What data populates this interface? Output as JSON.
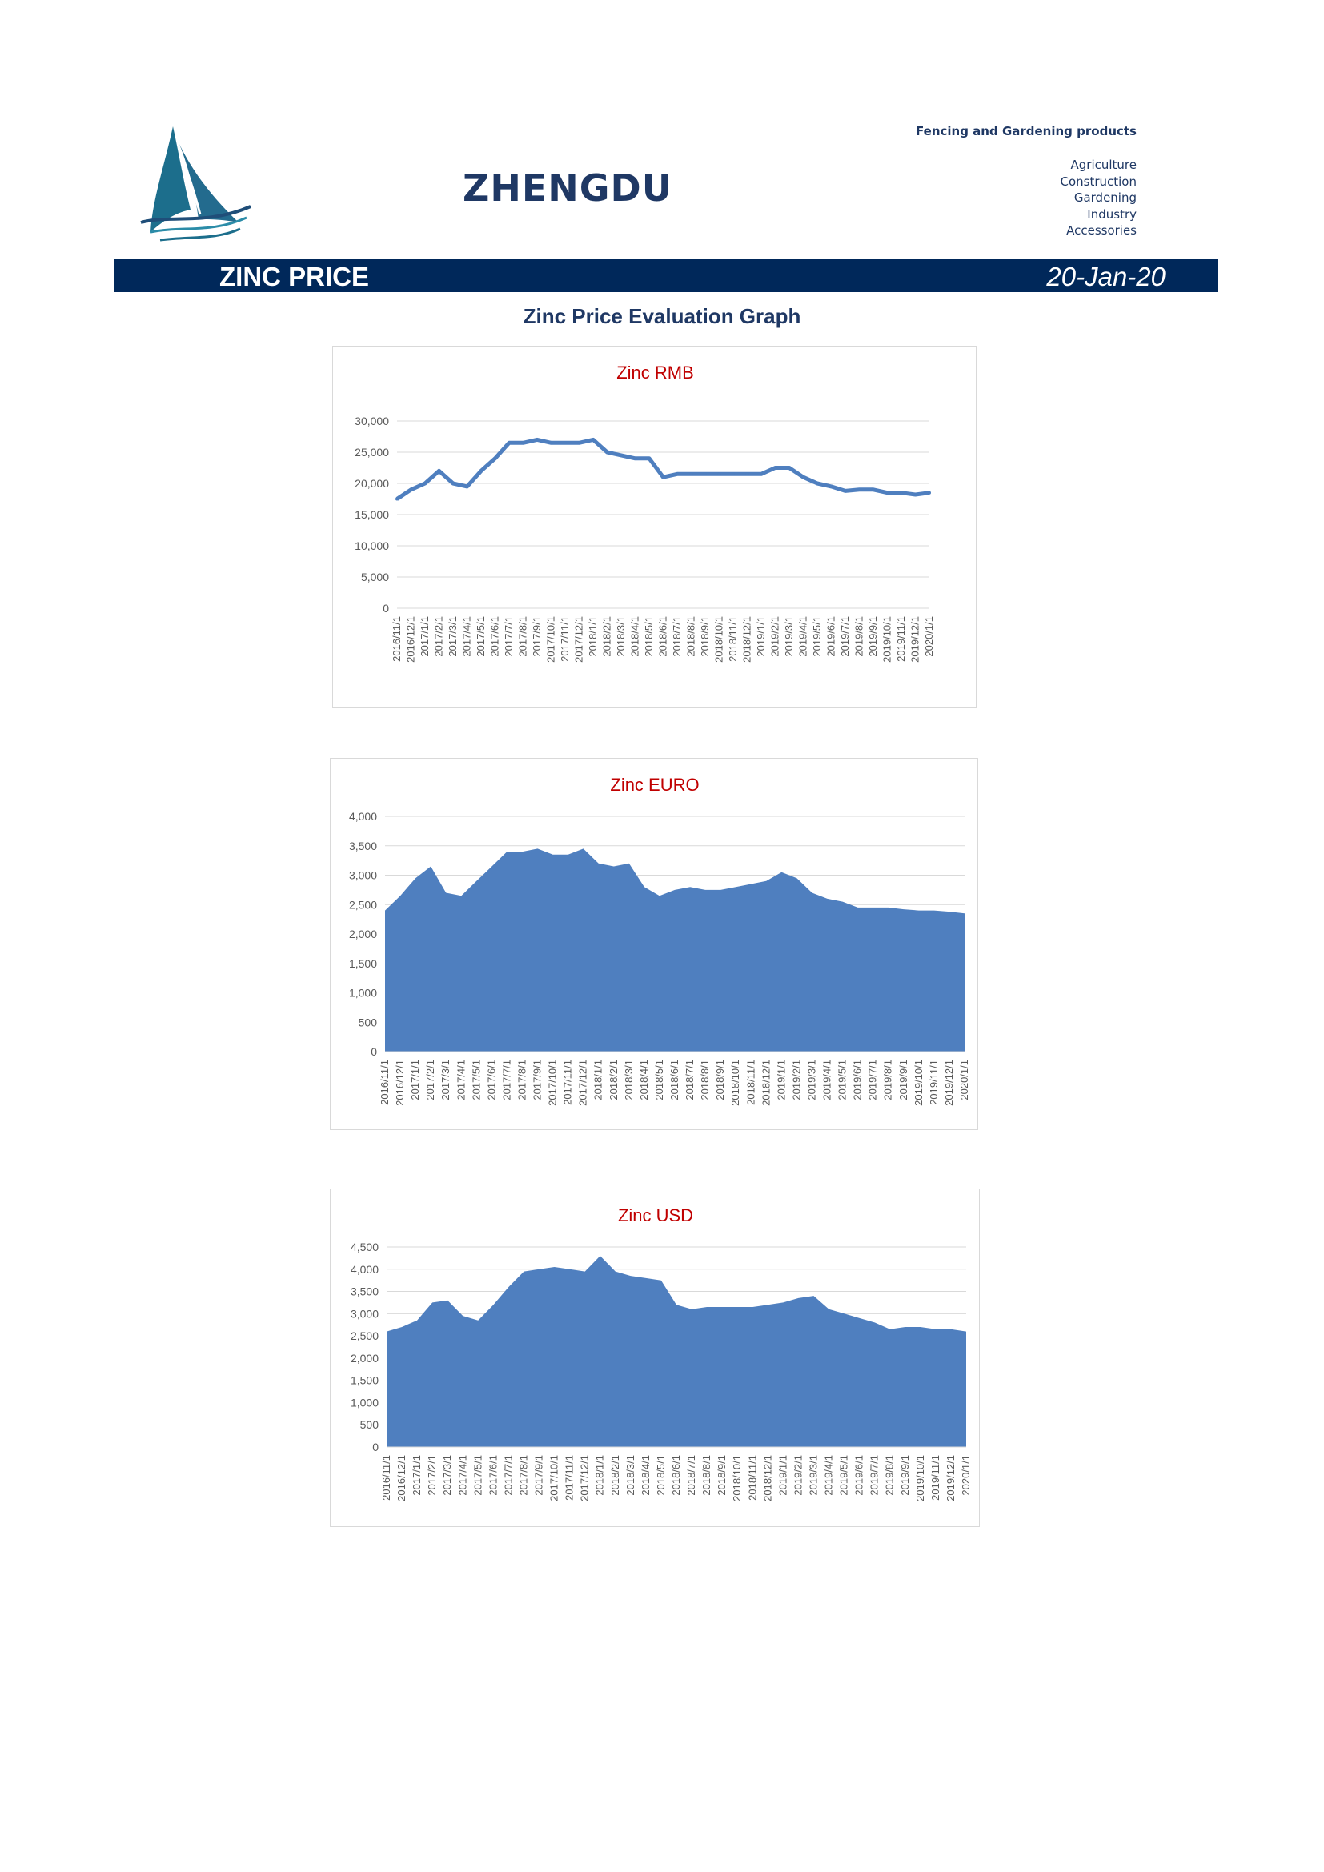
{
  "header": {
    "brand": "ZHENGDU",
    "tagline": "Fencing and Gardening products",
    "categories": [
      "Agriculture",
      "Construction",
      "Gardening",
      "Industry",
      "Accessories"
    ]
  },
  "banner": {
    "title": "ZINC PRICE",
    "date": "20-Jan-20"
  },
  "section_title": "Zinc Price Evaluation Graph",
  "colors": {
    "brand": "#1f3864",
    "banner": "#00285a",
    "series": "#4f7fbf",
    "chart_title": "#c00000",
    "axis_text": "#595959",
    "grid": "#d9d9d9"
  },
  "chart_data": [
    {
      "type": "line",
      "title": "Zinc RMB",
      "xlabel": "",
      "ylabel": "",
      "ylim": [
        0,
        30000
      ],
      "y_ticks": [
        "0",
        "5,000",
        "10,000",
        "15,000",
        "20,000",
        "25,000",
        "30,000"
      ],
      "grid": true,
      "categories": [
        "2016/11/1",
        "2016/12/1",
        "2017/1/1",
        "2017/2/1",
        "2017/3/1",
        "2017/4/1",
        "2017/5/1",
        "2017/6/1",
        "2017/7/1",
        "2017/8/1",
        "2017/9/1",
        "2017/10/1",
        "2017/11/1",
        "2017/12/1",
        "2018/1/1",
        "2018/2/1",
        "2018/3/1",
        "2018/4/1",
        "2018/5/1",
        "2018/6/1",
        "2018/7/1",
        "2018/8/1",
        "2018/9/1",
        "2018/10/1",
        "2018/11/1",
        "2018/12/1",
        "2019/1/1",
        "2019/2/1",
        "2019/3/1",
        "2019/4/1",
        "2019/5/1",
        "2019/6/1",
        "2019/7/1",
        "2019/8/1",
        "2019/9/1",
        "2019/10/1",
        "2019/11/1",
        "2019/12/1",
        "2020/1/1"
      ],
      "series": [
        {
          "values": [
            17500,
            19000,
            20000,
            22000,
            20000,
            19500,
            22000,
            24000,
            26500,
            26500,
            27000,
            26500,
            26500,
            26500,
            27000,
            25000,
            24500,
            24000,
            24000,
            21000,
            21500,
            21500,
            21500,
            21500,
            21500,
            21500,
            21500,
            22500,
            22500,
            21000,
            20000,
            19500,
            18800,
            19000,
            19000,
            18500,
            18500,
            18200,
            18500
          ]
        }
      ]
    },
    {
      "type": "area",
      "title": "Zinc EURO",
      "xlabel": "",
      "ylabel": "",
      "ylim": [
        0,
        4000
      ],
      "y_ticks": [
        "0",
        "500",
        "1,000",
        "1,500",
        "2,000",
        "2,500",
        "3,000",
        "3,500",
        "4,000"
      ],
      "grid": true,
      "categories": [
        "2016/11/1",
        "2016/12/1",
        "2017/1/1",
        "2017/2/1",
        "2017/3/1",
        "2017/4/1",
        "2017/5/1",
        "2017/6/1",
        "2017/7/1",
        "2017/8/1",
        "2017/9/1",
        "2017/10/1",
        "2017/11/1",
        "2017/12/1",
        "2018/1/1",
        "2018/2/1",
        "2018/3/1",
        "2018/4/1",
        "2018/5/1",
        "2018/6/1",
        "2018/7/1",
        "2018/8/1",
        "2018/9/1",
        "2018/10/1",
        "2018/11/1",
        "2018/12/1",
        "2019/1/1",
        "2019/2/1",
        "2019/3/1",
        "2019/4/1",
        "2019/5/1",
        "2019/6/1",
        "2019/7/1",
        "2019/8/1",
        "2019/9/1",
        "2019/10/1",
        "2019/11/1",
        "2019/12/1",
        "2020/1/1"
      ],
      "series": [
        {
          "values": [
            2400,
            2650,
            2950,
            3150,
            2700,
            2650,
            2900,
            3150,
            3400,
            3400,
            3450,
            3350,
            3350,
            3450,
            3200,
            3150,
            3200,
            2800,
            2650,
            2750,
            2800,
            2750,
            2750,
            2800,
            2850,
            2900,
            3050,
            2950,
            2700,
            2600,
            2550,
            2450,
            2450,
            2450,
            2420,
            2400,
            2400,
            2380,
            2350
          ]
        }
      ]
    },
    {
      "type": "area",
      "title": "Zinc USD",
      "xlabel": "",
      "ylabel": "",
      "ylim": [
        0,
        4500
      ],
      "y_ticks": [
        "0",
        "500",
        "1,000",
        "1,500",
        "2,000",
        "2,500",
        "3,000",
        "3,500",
        "4,000",
        "4,500"
      ],
      "grid": true,
      "categories": [
        "2016/11/1",
        "2016/12/1",
        "2017/1/1",
        "2017/2/1",
        "2017/3/1",
        "2017/4/1",
        "2017/5/1",
        "2017/6/1",
        "2017/7/1",
        "2017/8/1",
        "2017/9/1",
        "2017/10/1",
        "2017/11/1",
        "2017/12/1",
        "2018/1/1",
        "2018/2/1",
        "2018/3/1",
        "2018/4/1",
        "2018/5/1",
        "2018/6/1",
        "2018/7/1",
        "2018/8/1",
        "2018/9/1",
        "2018/10/1",
        "2018/11/1",
        "2018/12/1",
        "2019/1/1",
        "2019/2/1",
        "2019/3/1",
        "2019/4/1",
        "2019/5/1",
        "2019/6/1",
        "2019/7/1",
        "2019/8/1",
        "2019/9/1",
        "2019/10/1",
        "2019/11/1",
        "2019/12/1",
        "2020/1/1"
      ],
      "series": [
        {
          "values": [
            2600,
            2700,
            2850,
            3250,
            3300,
            2950,
            2850,
            3200,
            3600,
            3950,
            4000,
            4050,
            4000,
            3950,
            4300,
            3950,
            3850,
            3800,
            3750,
            3200,
            3100,
            3150,
            3150,
            3150,
            3150,
            3200,
            3250,
            3350,
            3400,
            3100,
            3000,
            2900,
            2800,
            2650,
            2700,
            2700,
            2650,
            2650,
            2600
          ]
        }
      ]
    }
  ]
}
